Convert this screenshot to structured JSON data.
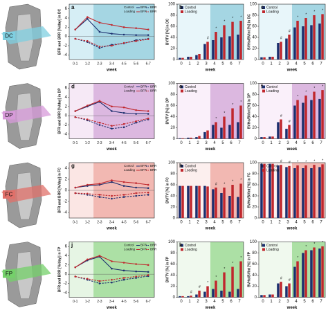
{
  "images": [
    {
      "label": "DC",
      "color": "#7fcfe0"
    },
    {
      "label": "DP",
      "color": "#d79ad9"
    },
    {
      "label": "FC",
      "color": "#e0706a"
    },
    {
      "label": "FP",
      "color": "#74d06a"
    }
  ],
  "chart_data": [
    {
      "type": "line",
      "panel": "a",
      "x_label": "week",
      "y_label": "BFR and BRR [%/day] in DC",
      "categories": [
        "0-1",
        "1-2",
        "2-3",
        "3-4",
        "4-5",
        "5-6",
        "6-7"
      ],
      "ylim": [
        -5,
        7
      ],
      "yticks": [
        -4,
        -2,
        0,
        2,
        4,
        6
      ],
      "background": "#d6eef5",
      "highlight": {
        "from": 2,
        "to": 6,
        "color": "#a5d6e3"
      },
      "legend": {
        "groups": [
          "Control",
          "Loading"
        ],
        "styles": [
          "BFR",
          "BRR"
        ]
      },
      "series": [
        {
          "group": "Control",
          "name": "BFR",
          "color": "#1c2f6e",
          "dash": false,
          "values": [
            1.5,
            3.8,
            1.0,
            0.6,
            0.4,
            0.3,
            0.3
          ]
        },
        {
          "group": "Loading",
          "name": "BFR",
          "color": "#c0272d",
          "dash": false,
          "values": [
            1.5,
            4.2,
            3.0,
            2.5,
            2.0,
            1.8,
            1.5
          ]
        },
        {
          "group": "Control",
          "name": "BRR",
          "color": "#1c2f6e",
          "dash": true,
          "values": [
            -0.5,
            -1.2,
            -2.5,
            -1.8,
            -1.5,
            -0.8,
            -0.5
          ]
        },
        {
          "group": "Loading",
          "name": "BRR",
          "color": "#c0272d",
          "dash": true,
          "values": [
            -0.5,
            -1.0,
            -2.2,
            -2.0,
            -1.4,
            -1.0,
            -0.6
          ]
        }
      ]
    },
    {
      "type": "bar",
      "panel": "b",
      "x_label": "week",
      "y_label": "BV/TV [%] in DC",
      "categories": [
        0,
        1,
        2,
        3,
        4,
        5,
        6,
        7
      ],
      "ylim": [
        0,
        100
      ],
      "yticks": [
        0,
        20,
        40,
        60,
        80,
        100
      ],
      "background": "#e8f6fa",
      "highlight": {
        "from": 4,
        "to": 7,
        "color": "#a5d6e3"
      },
      "series": [
        {
          "name": "Control",
          "color": "#1c2f6e",
          "values": [
            3,
            5,
            8,
            28,
            35,
            40,
            42,
            45
          ]
        },
        {
          "name": "Loading",
          "color": "#c0272d",
          "values": [
            3,
            5,
            10,
            32,
            50,
            62,
            68,
            70
          ],
          "marks": [
            null,
            null,
            null,
            "#",
            "*",
            "*",
            "*",
            "*"
          ]
        }
      ]
    },
    {
      "type": "bar",
      "panel": "c",
      "x_label": "week",
      "y_label": "BVHo/BVInt [%] in DC",
      "categories": [
        0,
        1,
        2,
        3,
        4,
        5,
        6,
        7
      ],
      "ylim": [
        0,
        100
      ],
      "yticks": [
        0,
        20,
        40,
        60,
        80,
        100
      ],
      "background": "#e8f6fa",
      "highlight": {
        "from": 4,
        "to": 7,
        "color": "#a5d6e3"
      },
      "series": [
        {
          "name": "Control",
          "color": "#1c2f6e",
          "values": [
            4,
            5,
            30,
            38,
            58,
            60,
            62,
            65
          ]
        },
        {
          "name": "Loading",
          "color": "#c0272d",
          "values": [
            4,
            5,
            32,
            45,
            70,
            75,
            80,
            82
          ],
          "marks": [
            null,
            null,
            "#",
            "#",
            "*",
            "*",
            "*",
            "*"
          ]
        }
      ]
    },
    {
      "type": "line",
      "panel": "d",
      "x_label": "week",
      "y_label": "BFR and BRR [%/day] in DP",
      "categories": [
        "0-1",
        "1-2",
        "2-3",
        "3-4",
        "4-5",
        "5-6",
        "6-7"
      ],
      "ylim": [
        -5,
        7
      ],
      "yticks": [
        -4,
        -2,
        0,
        2,
        4,
        6
      ],
      "background": "#f6e9f6",
      "highlight": {
        "from": 2,
        "to": 6,
        "color": "#dcb8e0"
      },
      "legend": {
        "groups": [
          "Control",
          "Loading"
        ],
        "styles": [
          "BFR",
          "BRR"
        ]
      },
      "series": [
        {
          "group": "Control",
          "name": "BFR",
          "color": "#1c2f6e",
          "dash": false,
          "values": [
            1.0,
            2.0,
            3.0,
            1.0,
            0.6,
            0.4,
            0.4
          ]
        },
        {
          "group": "Loading",
          "name": "BFR",
          "color": "#c0272d",
          "dash": false,
          "values": [
            1.0,
            2.2,
            3.2,
            2.0,
            1.8,
            1.2,
            1.0
          ]
        },
        {
          "group": "Control",
          "name": "BRR",
          "color": "#1c2f6e",
          "dash": true,
          "values": [
            -0.3,
            -1.0,
            -2.0,
            -2.8,
            -2.5,
            -1.5,
            -0.8
          ]
        },
        {
          "group": "Loading",
          "name": "BRR",
          "color": "#c0272d",
          "dash": true,
          "values": [
            -0.3,
            -0.8,
            -1.5,
            -2.2,
            -1.8,
            -1.2,
            -0.6
          ]
        }
      ]
    },
    {
      "type": "bar",
      "panel": "e",
      "x_label": "week",
      "y_label": "BV/TV [%] in DP",
      "categories": [
        0,
        1,
        2,
        3,
        4,
        5,
        6,
        7
      ],
      "ylim": [
        0,
        100
      ],
      "yticks": [
        0,
        20,
        40,
        60,
        80,
        100
      ],
      "background": "#faf0fa",
      "highlight": {
        "from": 4,
        "to": 7,
        "color": "#dcb8e0"
      },
      "series": [
        {
          "name": "Control",
          "color": "#1c2f6e",
          "values": [
            1,
            2,
            3,
            12,
            25,
            20,
            25,
            30
          ]
        },
        {
          "name": "Loading",
          "color": "#c0272d",
          "values": [
            1,
            2,
            5,
            15,
            30,
            40,
            55,
            60
          ],
          "marks": [
            null,
            null,
            null,
            null,
            "*",
            "*",
            "*",
            "*"
          ]
        }
      ]
    },
    {
      "type": "bar",
      "panel": "f",
      "x_label": "week",
      "y_label": "BVHo/BVInt [%] in DP",
      "categories": [
        0,
        1,
        2,
        3,
        4,
        5,
        6,
        7
      ],
      "ylim": [
        0,
        100
      ],
      "yticks": [
        0,
        20,
        40,
        60,
        80,
        100
      ],
      "background": "#faf0fa",
      "highlight": {
        "from": 4,
        "to": 7,
        "color": "#dcb8e0"
      },
      "series": [
        {
          "name": "Control",
          "color": "#1c2f6e",
          "values": [
            3,
            4,
            30,
            18,
            60,
            65,
            70,
            72
          ]
        },
        {
          "name": "Loading",
          "color": "#c0272d",
          "values": [
            3,
            4,
            35,
            25,
            70,
            78,
            85,
            88
          ],
          "marks": [
            null,
            null,
            "#",
            "#",
            "*",
            "*",
            "*",
            "*"
          ]
        }
      ]
    },
    {
      "type": "line",
      "panel": "g",
      "x_label": "week",
      "y_label": "BFR and BRR [%/day] in FC",
      "categories": [
        "0-1",
        "1-2",
        "2-3",
        "3-4",
        "4-5",
        "5-6",
        "6-7"
      ],
      "ylim": [
        -5,
        5
      ],
      "yticks": [
        -4,
        -2,
        0,
        2,
        4
      ],
      "background": "#fbe6e4",
      "highlight": {
        "from": 2,
        "to": 6,
        "color": "#f2b8b2"
      },
      "legend": {
        "groups": [
          "Control",
          "Loading"
        ],
        "styles": [
          "BFR",
          "BRR"
        ]
      },
      "series": [
        {
          "group": "Control",
          "name": "BFR",
          "color": "#1c2f6e",
          "dash": false,
          "values": [
            0.5,
            0.8,
            1.0,
            1.5,
            0.8,
            0.5,
            0.4
          ]
        },
        {
          "group": "Loading",
          "name": "BFR",
          "color": "#c0272d",
          "dash": false,
          "values": [
            0.5,
            1.0,
            1.2,
            1.8,
            1.5,
            1.3,
            1.0
          ]
        },
        {
          "group": "Control",
          "name": "BRR",
          "color": "#1c2f6e",
          "dash": true,
          "values": [
            -0.5,
            -0.8,
            -1.2,
            -1.5,
            -1.2,
            -1.0,
            -0.8
          ]
        },
        {
          "group": "Loading",
          "name": "BRR",
          "color": "#c0272d",
          "dash": true,
          "values": [
            -0.5,
            -0.6,
            -0.8,
            -1.0,
            -0.8,
            -0.5,
            -0.4
          ]
        }
      ]
    },
    {
      "type": "bar",
      "panel": "h",
      "x_label": "week",
      "y_label": "BV/TV [%] in FC",
      "categories": [
        0,
        1,
        2,
        3,
        4,
        5,
        6,
        7
      ],
      "ylim": [
        0,
        100
      ],
      "yticks": [
        0,
        20,
        40,
        60,
        80,
        100
      ],
      "background": "#fcefee",
      "highlight": {
        "from": 4,
        "to": 7,
        "color": "#f2b8b2"
      },
      "series": [
        {
          "name": "Control",
          "color": "#1c2f6e",
          "values": [
            58,
            58,
            58,
            58,
            52,
            45,
            40,
            38
          ]
        },
        {
          "name": "Loading",
          "color": "#c0272d",
          "values": [
            58,
            58,
            58,
            57,
            55,
            55,
            60,
            62
          ],
          "marks": [
            null,
            null,
            null,
            null,
            "#",
            "*",
            "*",
            "*"
          ]
        }
      ]
    },
    {
      "type": "bar",
      "panel": "i",
      "x_label": "week",
      "y_label": "BVHo/BVInt [%] in FC",
      "categories": [
        0,
        1,
        2,
        3,
        4,
        5,
        6,
        7
      ],
      "ylim": [
        0,
        100
      ],
      "yticks": [
        0,
        20,
        40,
        60,
        80,
        100
      ],
      "background": "#fcefee",
      "highlight": {
        "from": 4,
        "to": 7,
        "color": "#f2b8b2"
      },
      "series": [
        {
          "name": "Control",
          "color": "#1c2f6e",
          "values": [
            98,
            98,
            95,
            92,
            90,
            90,
            90,
            92
          ]
        },
        {
          "name": "Loading",
          "color": "#c0272d",
          "values": [
            98,
            98,
            96,
            94,
            95,
            95,
            96,
            97
          ],
          "marks": [
            null,
            null,
            "#",
            "#",
            "*",
            "*",
            "*",
            "*"
          ]
        }
      ]
    },
    {
      "type": "line",
      "panel": "j",
      "x_label": "week",
      "y_label": "BFR and BRR [%/day] in FP",
      "categories": [
        "0-1",
        "1-2",
        "2-3",
        "3-4",
        "4-5",
        "5-6",
        "6-7"
      ],
      "ylim": [
        -5,
        7
      ],
      "yticks": [
        -4,
        -2,
        0,
        2,
        4,
        6
      ],
      "background": "#e6f5e4",
      "highlight": {
        "from": 2,
        "to": 6,
        "color": "#ace0a5"
      },
      "legend": {
        "groups": [
          "Control",
          "Loading"
        ],
        "styles": [
          "BFR",
          "BRR"
        ]
      },
      "series": [
        {
          "group": "Control",
          "name": "BFR",
          "color": "#1c2f6e",
          "dash": false,
          "values": [
            1.5,
            3.0,
            3.8,
            1.2,
            0.8,
            0.6,
            0.5
          ]
        },
        {
          "group": "Loading",
          "name": "BFR",
          "color": "#c0272d",
          "dash": false,
          "values": [
            1.5,
            3.2,
            4.0,
            2.8,
            2.5,
            2.2,
            2.0
          ]
        },
        {
          "group": "Control",
          "name": "BRR",
          "color": "#1c2f6e",
          "dash": true,
          "values": [
            -0.5,
            -1.2,
            -2.0,
            -1.8,
            -1.2,
            -0.8,
            -0.4
          ]
        },
        {
          "group": "Loading",
          "name": "BRR",
          "color": "#c0272d",
          "dash": true,
          "values": [
            -0.5,
            -1.0,
            -1.5,
            -1.2,
            -0.8,
            -0.5,
            -0.2
          ]
        }
      ]
    },
    {
      "type": "bar",
      "panel": "k",
      "x_label": "week",
      "y_label": "BV/TV [%] in FP",
      "categories": [
        0,
        1,
        2,
        3,
        4,
        5,
        6,
        7
      ],
      "ylim": [
        0,
        100
      ],
      "yticks": [
        0,
        20,
        40,
        60,
        80,
        100
      ],
      "background": "#f0f9ee",
      "highlight": {
        "from": 4,
        "to": 7,
        "color": "#ace0a5"
      },
      "series": [
        {
          "name": "Control",
          "color": "#1c2f6e",
          "values": [
            2,
            2,
            5,
            10,
            15,
            12,
            10,
            15
          ]
        },
        {
          "name": "Loading",
          "color": "#c0272d",
          "values": [
            2,
            3,
            12,
            20,
            30,
            45,
            55,
            65
          ],
          "marks": [
            null,
            "#",
            "#",
            "*",
            "*",
            "*",
            "*",
            "*"
          ]
        }
      ]
    },
    {
      "type": "bar",
      "panel": "l",
      "x_label": "week",
      "y_label": "BVHo/BVInt [%] in FP",
      "categories": [
        0,
        1,
        2,
        3,
        4,
        5,
        6,
        7
      ],
      "ylim": [
        0,
        100
      ],
      "yticks": [
        0,
        20,
        40,
        60,
        80,
        100
      ],
      "background": "#f0f9ee",
      "highlight": {
        "from": 4,
        "to": 7,
        "color": "#ace0a5"
      },
      "series": [
        {
          "name": "Control",
          "color": "#1c2f6e",
          "values": [
            4,
            5,
            25,
            20,
            55,
            80,
            85,
            88
          ]
        },
        {
          "name": "Loading",
          "color": "#c0272d",
          "values": [
            4,
            5,
            28,
            25,
            65,
            85,
            90,
            92
          ],
          "marks": [
            null,
            null,
            "#",
            "#",
            "*",
            "*",
            "*",
            "*"
          ]
        }
      ]
    }
  ]
}
